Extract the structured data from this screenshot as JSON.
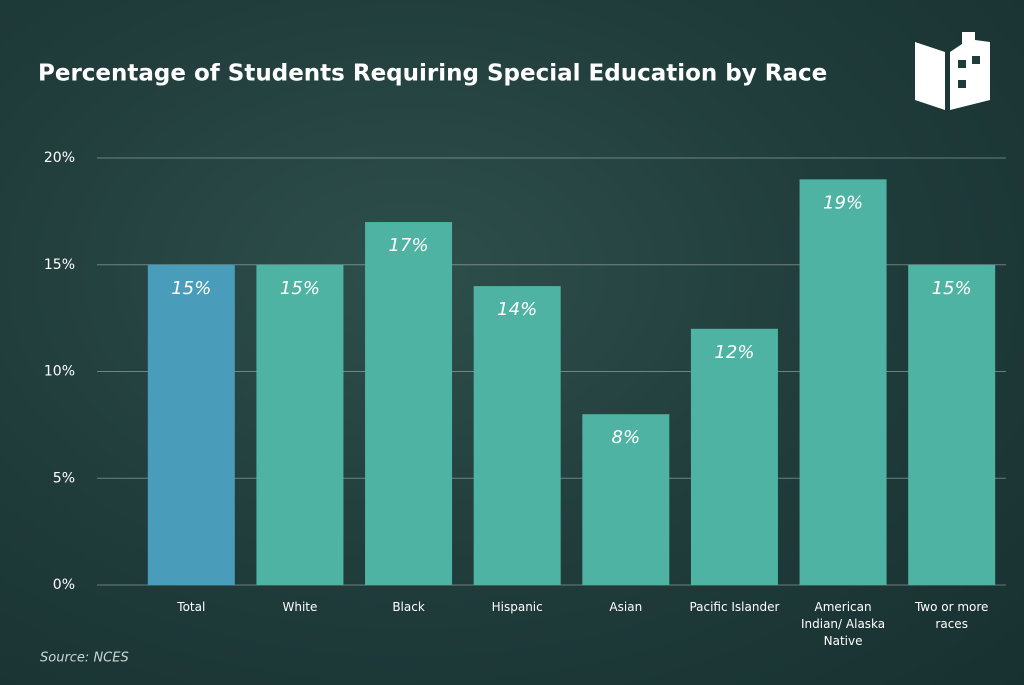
{
  "chart_data": {
    "type": "bar",
    "title": "Percentage of Students Requiring Special Education by Race",
    "categories": [
      "Total",
      "White",
      "Black",
      "Hispanic",
      "Asian",
      "Pacific Islander",
      "American Indian/ Alaska Native",
      "Two or more races"
    ],
    "values": [
      15,
      15,
      17,
      14,
      8,
      12,
      19,
      15
    ],
    "value_labels": [
      "15%",
      "15%",
      "17%",
      "14%",
      "8%",
      "12%",
      "19%",
      "15%"
    ],
    "colors": [
      "#4a9dba",
      "#4fb3a3",
      "#4fb3a3",
      "#4fb3a3",
      "#4fb3a3",
      "#4fb3a3",
      "#4fb3a3",
      "#4fb3a3"
    ],
    "ylim": [
      0,
      20
    ],
    "yticks": [
      {
        "value": 0,
        "label": "0%"
      },
      {
        "value": 5,
        "label": "5%"
      },
      {
        "value": 10,
        "label": "10%"
      },
      {
        "value": 15,
        "label": "15%"
      },
      {
        "value": 20,
        "label": "20%"
      }
    ],
    "grid": true,
    "source": "Source: NCES"
  }
}
